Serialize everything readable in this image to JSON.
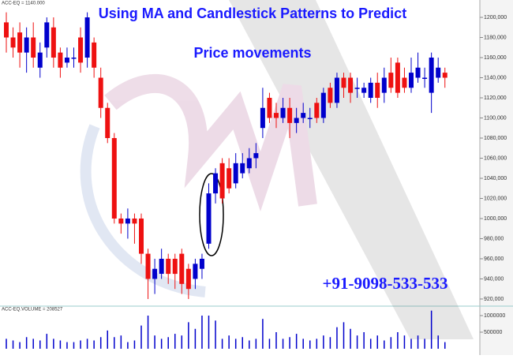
{
  "chart_data": {
    "type": "candlestick",
    "title": "Using MA and Candlestick Patterns to Predict",
    "subtitle": "Price movements",
    "annotation": "+91-9098-533-533",
    "price_label": "ACC-EQ = 1140.000",
    "volume_label": "ACC-EQ.VOLUME = 208527",
    "up_color": "#0000cc",
    "down_color": "#ee1111",
    "volume_color": "#0000cc",
    "ylim": [
      913700,
      1217250
    ],
    "yticks": [
      {
        "value": 920000,
        "label": "920,000"
      },
      {
        "value": 940000,
        "label": "940,000"
      },
      {
        "value": 960000,
        "label": "960,000"
      },
      {
        "value": 980000,
        "label": "980,000"
      },
      {
        "value": 1000000,
        "label": "1000,000"
      },
      {
        "value": 1020000,
        "label": "1020,000"
      },
      {
        "value": 1040000,
        "label": "1040,000"
      },
      {
        "value": 1060000,
        "label": "1060,000"
      },
      {
        "value": 1080000,
        "label": "1080,000"
      },
      {
        "value": 1100000,
        "label": "1100,000"
      },
      {
        "value": 1120000,
        "label": "1120,000"
      },
      {
        "value": 1140000,
        "label": "1140,000"
      },
      {
        "value": 1160000,
        "label": "1160,000"
      },
      {
        "value": 1180000,
        "label": "1180,000"
      },
      {
        "value": 1200000,
        "label": "1200,000"
      }
    ],
    "y2lim": [
      0,
      1285000
    ],
    "y2ticks": [
      500000,
      1000000
    ],
    "open": [
      1195000,
      1180000,
      1185000,
      1165000,
      1180000,
      1150000,
      1170000,
      1190000,
      1165000,
      1155000,
      1160000,
      1180000,
      1160000,
      1175000,
      1140000,
      1110000,
      1080000,
      1000000,
      995000,
      1000000,
      1000000,
      965000,
      940000,
      945000,
      960000,
      960000,
      965000,
      950000,
      940000,
      950000,
      975000,
      1025000,
      1055000,
      1050000,
      1035000,
      1045000,
      1050000,
      1060000,
      1090000,
      1120000,
      1105000,
      1100000,
      1110000,
      1095000,
      1100000,
      1100000,
      1115000,
      1100000,
      1130000,
      1115000,
      1140000,
      1140000,
      1130000,
      1125000,
      1120000,
      1135000,
      1125000,
      1145000,
      1155000,
      1140000,
      1130000,
      1140000,
      1140000,
      1125000,
      1140000,
      1145000
    ],
    "high": [
      1205000,
      1190000,
      1195000,
      1190000,
      1195000,
      1175000,
      1200000,
      1200000,
      1170000,
      1170000,
      1170000,
      1190000,
      1205000,
      1180000,
      1150000,
      1115000,
      1085000,
      1005000,
      1010000,
      1005000,
      1005000,
      970000,
      960000,
      970000,
      965000,
      965000,
      970000,
      955000,
      960000,
      965000,
      1035000,
      1050000,
      1060000,
      1060000,
      1065000,
      1065000,
      1070000,
      1075000,
      1130000,
      1125000,
      1115000,
      1120000,
      1120000,
      1110000,
      1115000,
      1110000,
      1120000,
      1130000,
      1135000,
      1145000,
      1145000,
      1145000,
      1140000,
      1135000,
      1140000,
      1145000,
      1150000,
      1160000,
      1160000,
      1150000,
      1160000,
      1165000,
      1150000,
      1165000,
      1160000,
      1150000
    ],
    "low": [
      1165000,
      1160000,
      1150000,
      1145000,
      1150000,
      1140000,
      1160000,
      1150000,
      1140000,
      1150000,
      1150000,
      1145000,
      1150000,
      1140000,
      1100000,
      1075000,
      995000,
      985000,
      980000,
      975000,
      955000,
      920000,
      925000,
      940000,
      935000,
      930000,
      925000,
      920000,
      930000,
      940000,
      970000,
      1015000,
      1015000,
      1025000,
      1030000,
      1040000,
      1045000,
      1050000,
      1080000,
      1095000,
      1090000,
      1095000,
      1080000,
      1085000,
      1095000,
      1090000,
      1095000,
      1095000,
      1110000,
      1110000,
      1120000,
      1115000,
      1120000,
      1120000,
      1115000,
      1110000,
      1115000,
      1125000,
      1120000,
      1125000,
      1125000,
      1135000,
      1130000,
      1105000,
      1135000,
      1130000
    ],
    "close": [
      1180000,
      1170000,
      1165000,
      1180000,
      1160000,
      1165000,
      1195000,
      1160000,
      1150000,
      1160000,
      1160000,
      1155000,
      1200000,
      1150000,
      1110000,
      1080000,
      1000000,
      995000,
      1000000,
      995000,
      965000,
      940000,
      950000,
      960000,
      945000,
      945000,
      935000,
      930000,
      955000,
      960000,
      1025000,
      1045000,
      1020000,
      1030000,
      1055000,
      1055000,
      1060000,
      1065000,
      1110000,
      1100000,
      1100000,
      1110000,
      1095000,
      1100000,
      1105000,
      1100000,
      1100000,
      1125000,
      1115000,
      1140000,
      1130000,
      1125000,
      1130000,
      1130000,
      1135000,
      1120000,
      1140000,
      1130000,
      1125000,
      1130000,
      1145000,
      1150000,
      1140000,
      1160000,
      1150000,
      1140000
    ],
    "volume": [
      300000,
      250000,
      200000,
      350000,
      300000,
      250000,
      450000,
      300000,
      250000,
      200000,
      200000,
      250000,
      300000,
      250000,
      350000,
      550000,
      350000,
      400000,
      200000,
      250000,
      700000,
      1000000,
      400000,
      300000,
      350000,
      450000,
      400000,
      800000,
      600000,
      1000000,
      1000000,
      850000,
      300000,
      400000,
      300000,
      350000,
      250000,
      300000,
      900000,
      300000,
      500000,
      300000,
      350000,
      450000,
      300000,
      250000,
      300000,
      400000,
      350000,
      650000,
      800000,
      600000,
      400000,
      500000,
      300000,
      400000,
      250000,
      350000,
      500000,
      400000,
      300000,
      400000,
      300000,
      1150000,
      400000,
      200000
    ]
  }
}
